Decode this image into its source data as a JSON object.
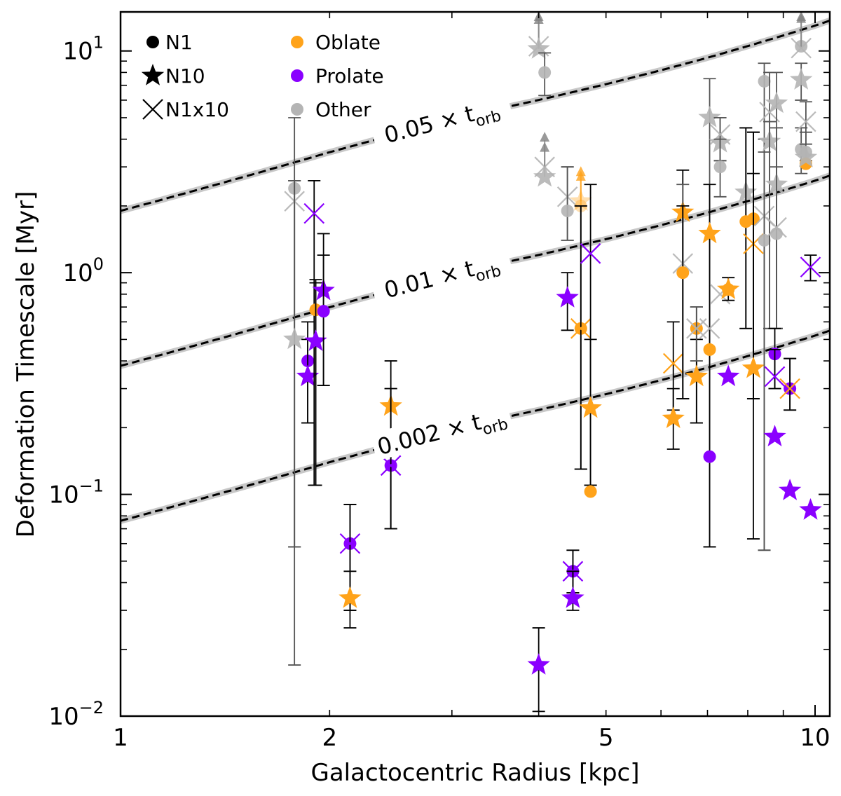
{
  "chart_data": {
    "type": "scatter",
    "xlabel": "Galactocentric Radius [kpc]",
    "ylabel": "Deformation Timescale [Myr]",
    "xscale": "log",
    "yscale": "log",
    "xlim": [
      1,
      10.5
    ],
    "ylim": [
      0.01,
      15
    ],
    "x_tick_labels": [
      {
        "value": 1,
        "label": "1"
      },
      {
        "value": 2,
        "label": "2"
      },
      {
        "value": 5,
        "label": "5"
      },
      {
        "value": 10,
        "label": "10"
      }
    ],
    "y_tick_labels": [
      {
        "value": 0.01,
        "base": "10",
        "exp": "−2"
      },
      {
        "value": 0.1,
        "base": "10",
        "exp": "−1"
      },
      {
        "value": 1,
        "base": "10",
        "exp": "0"
      },
      {
        "value": 10,
        "base": "10",
        "exp": "1"
      }
    ],
    "colors": {
      "oblate": "#ffa31a",
      "prolate": "#8a00ff",
      "other": "#b4b4b4",
      "other_dark": "#808080",
      "line_shadow": "#c8c8c8"
    },
    "legend": {
      "markers": [
        {
          "symbol": "circle",
          "label": "N1"
        },
        {
          "symbol": "star",
          "label": "N10"
        },
        {
          "symbol": "cross",
          "label": "N1x10"
        }
      ],
      "classes": [
        {
          "key": "oblate",
          "label": "Oblate"
        },
        {
          "key": "prolate",
          "label": "Prolate"
        },
        {
          "key": "other",
          "label": "Other"
        }
      ]
    },
    "reference_lines": [
      {
        "label_prefix": "0.05",
        "label_sub": "orb",
        "value_at_1kpc": 1.9,
        "value_at_10kpc": 13,
        "label_x": 2.9
      },
      {
        "label_prefix": "0.01",
        "label_sub": "orb",
        "value_at_1kpc": 0.38,
        "value_at_10kpc": 2.6,
        "label_x": 2.9
      },
      {
        "label_prefix": "0.002",
        "label_sub": "orb",
        "value_at_1kpc": 0.076,
        "value_at_10kpc": 0.52,
        "label_x": 2.9
      }
    ],
    "reference_curve_shape": [
      [
        1,
        0
      ],
      [
        2,
        0.52
      ],
      [
        3,
        1.0
      ],
      [
        4,
        1.34
      ],
      [
        5,
        1.69
      ],
      [
        6,
        2.05
      ],
      [
        7,
        2.42
      ],
      [
        8,
        2.81
      ],
      [
        9,
        3.21
      ],
      [
        10,
        3.62
      ],
      [
        10.5,
        3.85
      ]
    ],
    "points": [
      {
        "x": 1.78,
        "y": 2.4,
        "lo": 0.017,
        "hi": 5.0,
        "m": "circle",
        "c": "other"
      },
      {
        "x": 1.78,
        "y": 2.1,
        "lo": 0.058,
        "hi": 2.6,
        "m": "cross",
        "c": "other"
      },
      {
        "x": 1.78,
        "y": 0.5,
        "lo": 0.058,
        "hi": 2.6,
        "m": "star",
        "c": "other"
      },
      {
        "x": 1.86,
        "y": 0.4,
        "lo": 0.21,
        "hi": 0.6,
        "m": "circle",
        "c": "prolate"
      },
      {
        "x": 1.86,
        "y": 0.34,
        "lo": 0.21,
        "hi": 0.5,
        "m": "star",
        "c": "prolate"
      },
      {
        "x": 1.9,
        "y": 1.85,
        "lo": 0.11,
        "hi": 2.6,
        "m": "cross",
        "c": "prolate"
      },
      {
        "x": 1.91,
        "y": 0.68,
        "lo": 0.11,
        "hi": 0.93,
        "m": "circle",
        "c": "oblate"
      },
      {
        "x": 1.91,
        "y": 0.49,
        "lo": 0.11,
        "hi": 0.9,
        "m": "star",
        "c": "prolate"
      },
      {
        "x": 1.96,
        "y": 0.83,
        "lo": 0.31,
        "hi": 1.5,
        "m": "star",
        "c": "prolate"
      },
      {
        "x": 1.96,
        "y": 0.67,
        "lo": 0.31,
        "hi": 1.2,
        "m": "circle",
        "c": "prolate"
      },
      {
        "x": 2.14,
        "y": 0.06,
        "lo": 0.03,
        "hi": 0.09,
        "m": "circle",
        "c": "prolate"
      },
      {
        "x": 2.14,
        "y": 0.06,
        "lo": 0.03,
        "hi": 0.09,
        "m": "cross",
        "c": "prolate"
      },
      {
        "x": 2.14,
        "y": 0.034,
        "lo": 0.025,
        "hi": 0.045,
        "m": "star",
        "c": "oblate"
      },
      {
        "x": 2.45,
        "y": 0.25,
        "lo": 0.07,
        "hi": 0.4,
        "m": "star",
        "c": "oblate"
      },
      {
        "x": 2.45,
        "y": 0.135,
        "lo": 0.07,
        "hi": 0.3,
        "m": "circle",
        "c": "prolate"
      },
      {
        "x": 2.45,
        "y": 0.135,
        "lo": 0.07,
        "hi": 0.3,
        "m": "cross",
        "c": "prolate"
      },
      {
        "x": 4.0,
        "y": 10.5,
        "m": "cross",
        "c": "other",
        "arrow": true
      },
      {
        "x": 4.0,
        "y": 10.2,
        "m": "star",
        "c": "other",
        "arrow": true
      },
      {
        "x": 4.0,
        "y": 0.017,
        "lo": 0.0105,
        "hi": 0.025,
        "m": "star",
        "c": "prolate"
      },
      {
        "x": 4.08,
        "y": 8.0,
        "lo": 6.3,
        "hi": 9.8,
        "m": "circle",
        "c": "other"
      },
      {
        "x": 4.08,
        "y": 3.0,
        "m": "cross",
        "c": "other",
        "arrow": true
      },
      {
        "x": 4.08,
        "y": 2.7,
        "m": "star",
        "c": "other",
        "arrow": true
      },
      {
        "x": 4.4,
        "y": 2.2,
        "lo": 1.4,
        "hi": 3.0,
        "m": "cross",
        "c": "other"
      },
      {
        "x": 4.4,
        "y": 1.9,
        "lo": 1.4,
        "hi": 3.0,
        "m": "circle",
        "c": "other"
      },
      {
        "x": 4.4,
        "y": 0.77,
        "lo": 0.55,
        "hi": 1.0,
        "m": "star",
        "c": "prolate"
      },
      {
        "x": 4.48,
        "y": 0.045,
        "lo": 0.036,
        "hi": 0.056,
        "m": "circle",
        "c": "prolate"
      },
      {
        "x": 4.48,
        "y": 0.045,
        "lo": 0.036,
        "hi": 0.056,
        "m": "cross",
        "c": "prolate"
      },
      {
        "x": 4.48,
        "y": 0.034,
        "lo": 0.03,
        "hi": 0.045,
        "m": "star",
        "c": "prolate"
      },
      {
        "x": 4.6,
        "y": 2.1,
        "m": "star",
        "c": "oblate",
        "arrow": true
      },
      {
        "x": 4.6,
        "y": 2.0,
        "m": "circle",
        "c": "oblate",
        "arrow": true
      },
      {
        "x": 4.6,
        "y": 0.56,
        "lo": 0.13,
        "hi": 2.0,
        "m": "circle",
        "c": "oblate"
      },
      {
        "x": 4.6,
        "y": 0.56,
        "lo": 0.13,
        "hi": 2.0,
        "m": "cross",
        "c": "oblate"
      },
      {
        "x": 4.75,
        "y": 1.22,
        "lo": 0.11,
        "hi": 2.5,
        "m": "cross",
        "c": "prolate"
      },
      {
        "x": 4.75,
        "y": 0.245,
        "lo": 0.11,
        "hi": 0.5,
        "m": "star",
        "c": "oblate"
      },
      {
        "x": 4.75,
        "y": 0.103,
        "m": "circle",
        "c": "oblate"
      },
      {
        "x": 6.25,
        "y": 0.39,
        "lo": 0.24,
        "hi": 0.6,
        "m": "cross",
        "c": "oblate"
      },
      {
        "x": 6.25,
        "y": 0.22,
        "lo": 0.16,
        "hi": 0.3,
        "m": "star",
        "c": "oblate"
      },
      {
        "x": 6.45,
        "y": 1.87,
        "lo": 0.27,
        "hi": 2.9,
        "m": "star",
        "c": "oblate"
      },
      {
        "x": 6.45,
        "y": 1.1,
        "lo": 0.27,
        "hi": 2.5,
        "m": "cross",
        "c": "other"
      },
      {
        "x": 6.45,
        "y": 1.0,
        "lo": 0.27,
        "hi": 2.0,
        "m": "circle",
        "c": "oblate"
      },
      {
        "x": 6.75,
        "y": 0.56,
        "lo": 0.21,
        "hi": 0.7,
        "m": "circle",
        "c": "oblate"
      },
      {
        "x": 6.75,
        "y": 0.34,
        "lo": 0.21,
        "hi": 0.5,
        "m": "star",
        "c": "oblate"
      },
      {
        "x": 6.75,
        "y": 0.56,
        "lo": 0.4,
        "hi": 0.7,
        "m": "cross",
        "c": "other"
      },
      {
        "x": 7.05,
        "y": 5.0,
        "lo": 0.058,
        "hi": 7.5,
        "m": "star",
        "c": "other"
      },
      {
        "x": 7.05,
        "y": 1.5,
        "lo": 0.058,
        "hi": 2.5,
        "m": "star",
        "c": "oblate"
      },
      {
        "x": 7.05,
        "y": 0.56,
        "m": "cross",
        "c": "other"
      },
      {
        "x": 7.05,
        "y": 0.45,
        "m": "circle",
        "c": "oblate"
      },
      {
        "x": 7.05,
        "y": 0.148,
        "m": "circle",
        "c": "prolate"
      },
      {
        "x": 7.3,
        "y": 3.85,
        "lo": 3.2,
        "hi": 5.0,
        "m": "star",
        "c": "other"
      },
      {
        "x": 7.3,
        "y": 4.2,
        "lo": 3.2,
        "hi": 5.0,
        "m": "cross",
        "c": "other"
      },
      {
        "x": 7.3,
        "y": 3.0,
        "lo": 2.2,
        "hi": 4.0,
        "m": "circle",
        "c": "other"
      },
      {
        "x": 7.3,
        "y": 0.8,
        "m": "cross",
        "c": "other"
      },
      {
        "x": 7.5,
        "y": 0.84,
        "lo": 0.75,
        "hi": 0.95,
        "m": "circle",
        "c": "oblate"
      },
      {
        "x": 7.5,
        "y": 0.84,
        "m": "star",
        "c": "oblate"
      },
      {
        "x": 7.5,
        "y": 0.34,
        "m": "star",
        "c": "prolate"
      },
      {
        "x": 7.95,
        "y": 2.3,
        "lo": 0.56,
        "hi": 4.5,
        "m": "star",
        "c": "other"
      },
      {
        "x": 7.95,
        "y": 1.7,
        "lo": 0.56,
        "hi": 4.5,
        "m": "circle",
        "c": "oblate"
      },
      {
        "x": 8.15,
        "y": 1.75,
        "lo": 0.27,
        "hi": 4.3,
        "m": "circle",
        "c": "oblate"
      },
      {
        "x": 8.15,
        "y": 1.35,
        "lo": 0.27,
        "hi": 4.3,
        "m": "cross",
        "c": "oblate"
      },
      {
        "x": 8.15,
        "y": 0.37,
        "lo": 0.063,
        "hi": 2.8,
        "m": "star",
        "c": "oblate"
      },
      {
        "x": 8.45,
        "y": 7.3,
        "lo": 0.056,
        "hi": 8.8,
        "m": "circle",
        "c": "other"
      },
      {
        "x": 8.45,
        "y": 1.8,
        "lo": 0.056,
        "hi": 4.0,
        "m": "cross",
        "c": "other"
      },
      {
        "x": 8.45,
        "y": 1.4,
        "lo": 0.056,
        "hi": 3.5,
        "m": "circle",
        "c": "other"
      },
      {
        "x": 8.6,
        "y": 3.9,
        "lo": 0.56,
        "hi": 4.8,
        "m": "star",
        "c": "other"
      },
      {
        "x": 8.6,
        "y": 5.3,
        "lo": 0.56,
        "hi": 8.0,
        "m": "cross",
        "c": "other"
      },
      {
        "x": 8.8,
        "y": 5.8,
        "lo": 0.56,
        "hi": 8.0,
        "m": "star",
        "c": "other"
      },
      {
        "x": 8.8,
        "y": 2.5,
        "lo": 0.56,
        "hi": 4.5,
        "m": "star",
        "c": "other"
      },
      {
        "x": 8.8,
        "y": 1.5,
        "lo": 0.56,
        "hi": 3.0,
        "m": "circle",
        "c": "other"
      },
      {
        "x": 8.8,
        "y": 1.6,
        "m": "cross",
        "c": "other"
      },
      {
        "x": 8.75,
        "y": 0.43,
        "lo": 0.3,
        "hi": 0.56,
        "m": "circle",
        "c": "prolate"
      },
      {
        "x": 8.75,
        "y": 0.34,
        "lo": 0.3,
        "hi": 0.45,
        "m": "cross",
        "c": "prolate"
      },
      {
        "x": 8.75,
        "y": 0.182,
        "m": "star",
        "c": "prolate"
      },
      {
        "x": 9.2,
        "y": 0.3,
        "lo": 0.24,
        "hi": 0.41,
        "m": "circle",
        "c": "prolate"
      },
      {
        "x": 9.2,
        "y": 0.3,
        "lo": 0.24,
        "hi": 0.41,
        "m": "cross",
        "c": "oblate"
      },
      {
        "x": 9.2,
        "y": 0.104,
        "m": "star",
        "c": "prolate"
      },
      {
        "x": 9.55,
        "y": 10.5,
        "m": "circle",
        "c": "other",
        "arrow": true
      },
      {
        "x": 9.55,
        "y": 10.3,
        "m": "cross",
        "c": "other",
        "arrow": true
      },
      {
        "x": 9.55,
        "y": 7.4,
        "lo": 6.0,
        "hi": 8.8,
        "m": "star",
        "c": "other"
      },
      {
        "x": 9.55,
        "y": 3.6,
        "lo": 2.8,
        "hi": 4.5,
        "m": "circle",
        "c": "other"
      },
      {
        "x": 9.7,
        "y": 4.8,
        "lo": 3.8,
        "hi": 5.9,
        "m": "cross",
        "c": "other"
      },
      {
        "x": 9.7,
        "y": 3.5,
        "lo": 3.2,
        "hi": 4.3,
        "m": "circle",
        "c": "other"
      },
      {
        "x": 9.7,
        "y": 3.1,
        "m": "circle",
        "c": "oblate"
      },
      {
        "x": 9.7,
        "y": 3.3,
        "m": "star",
        "c": "other"
      },
      {
        "x": 9.85,
        "y": 1.06,
        "lo": 0.92,
        "hi": 1.2,
        "m": "cross",
        "c": "prolate"
      },
      {
        "x": 9.85,
        "y": 0.085,
        "m": "star",
        "c": "prolate"
      }
    ]
  }
}
